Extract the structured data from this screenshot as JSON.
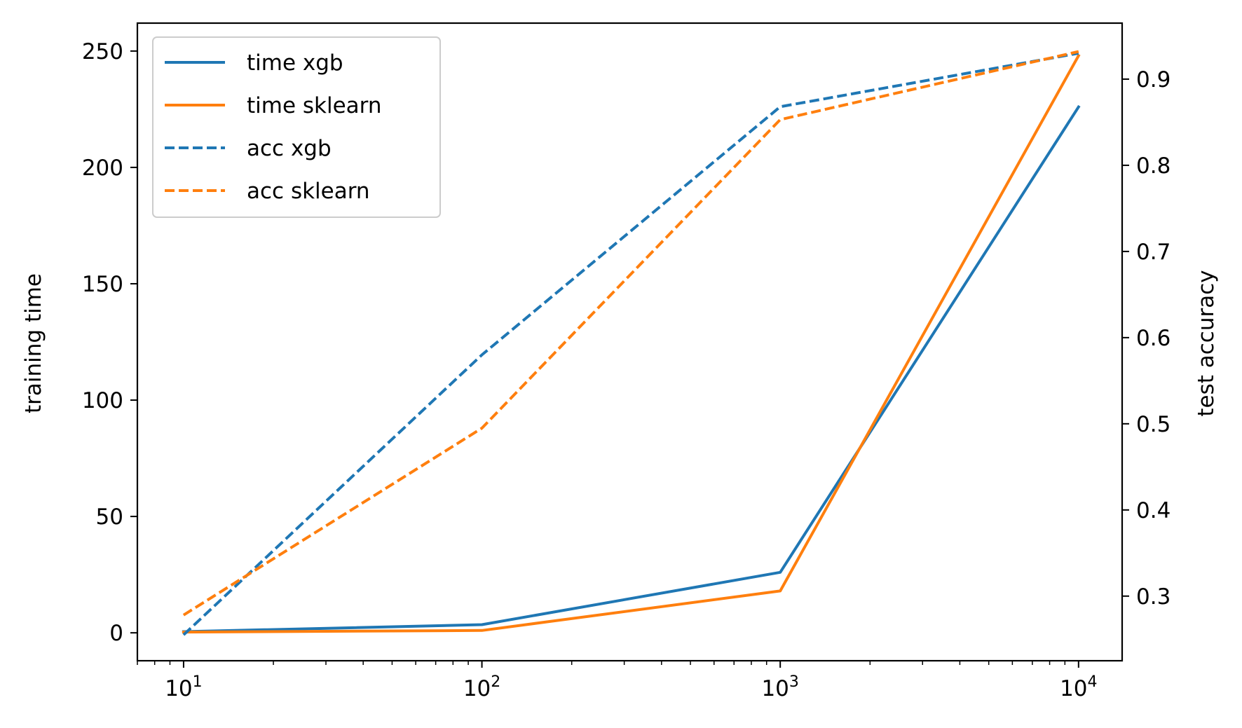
{
  "chart_data": {
    "type": "line",
    "title": "",
    "xscale": "log",
    "x": [
      10,
      100,
      1000,
      10000
    ],
    "x_ticks": [
      {
        "value": 10,
        "base": "10",
        "exp": "1"
      },
      {
        "value": 100,
        "base": "10",
        "exp": "2"
      },
      {
        "value": 1000,
        "base": "10",
        "exp": "3"
      },
      {
        "value": 10000,
        "base": "10",
        "exp": "4"
      }
    ],
    "xlim": [
      7,
      14000
    ],
    "left_axis": {
      "label": "training time",
      "ylim": [
        -12,
        262
      ],
      "ticks": [
        0,
        50,
        100,
        150,
        200,
        250
      ],
      "tick_labels": [
        "0",
        "50",
        "100",
        "150",
        "200",
        "250"
      ]
    },
    "right_axis": {
      "label": "test accuracy",
      "ylim": [
        0.225,
        0.965
      ],
      "ticks": [
        0.3,
        0.4,
        0.5,
        0.6,
        0.7,
        0.8,
        0.9
      ],
      "tick_labels": [
        "0.3",
        "0.4",
        "0.5",
        "0.6",
        "0.7",
        "0.8",
        "0.9"
      ]
    },
    "series": [
      {
        "name": "time xgb",
        "axis": "left",
        "color": "#1f77b4",
        "style": "solid",
        "values": [
          0.5,
          3.5,
          26,
          226
        ]
      },
      {
        "name": "time sklearn",
        "axis": "left",
        "color": "#ff7f0e",
        "style": "solid",
        "values": [
          0.3,
          1.0,
          18,
          248
        ]
      },
      {
        "name": "acc xgb",
        "axis": "right",
        "color": "#1f77b4",
        "style": "dashed",
        "values": [
          0.255,
          0.58,
          0.868,
          0.93
        ]
      },
      {
        "name": "acc sklearn",
        "axis": "right",
        "color": "#ff7f0e",
        "style": "dashed",
        "values": [
          0.278,
          0.495,
          0.853,
          0.932
        ]
      }
    ],
    "legend": {
      "position": "upper-left",
      "entries": [
        "time xgb",
        "time sklearn",
        "acc xgb",
        "acc sklearn"
      ]
    },
    "grid": false
  }
}
